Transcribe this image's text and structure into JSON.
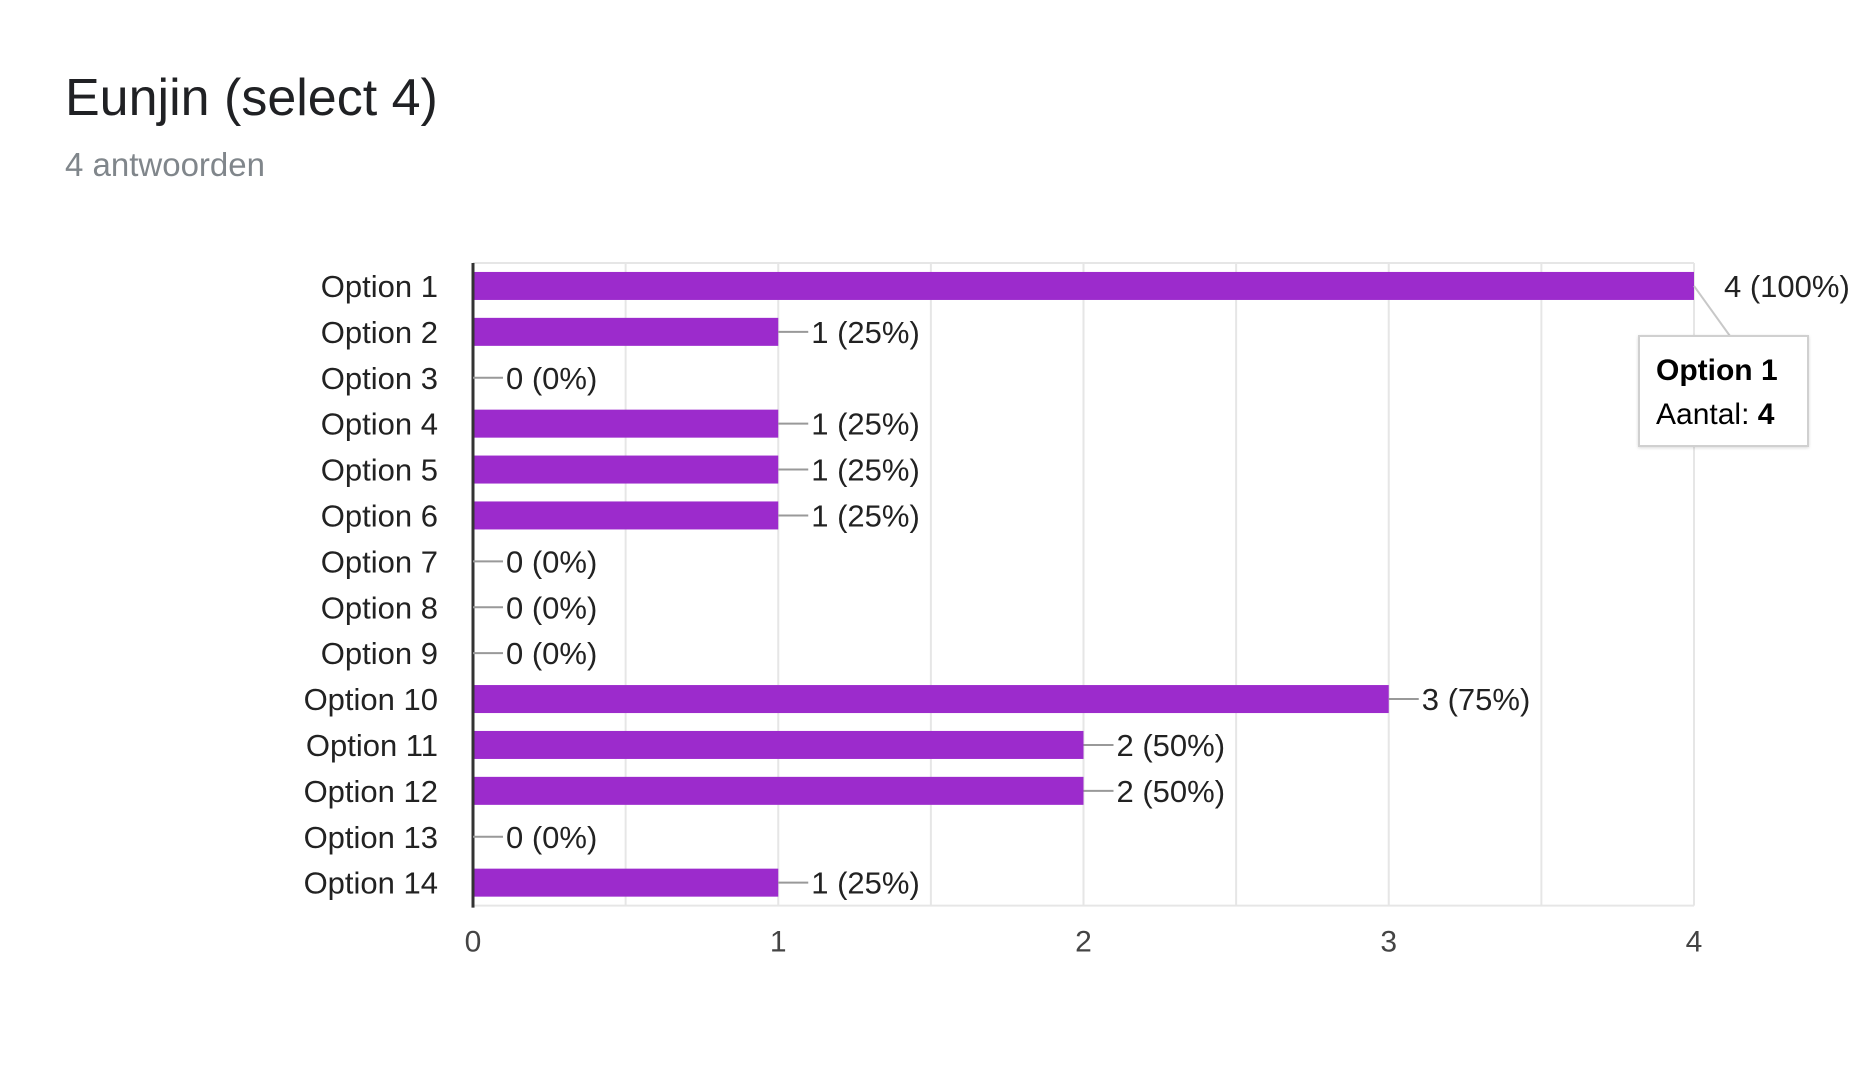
{
  "header": {
    "title": "Eunjin (select 4)",
    "subtitle": "4 antwoorden"
  },
  "tooltip": {
    "category": "Option 1",
    "count_label": "Aantal:",
    "count_value": "4"
  },
  "colors": {
    "bar": "#9c2bcc",
    "grid": "#e6e6e6",
    "axis": "#333333",
    "leader": "#999999",
    "text": "#222222"
  },
  "chart_data": {
    "type": "bar",
    "orientation": "horizontal",
    "title": "",
    "xlabel": "",
    "ylabel": "",
    "xlim": [
      0,
      4
    ],
    "x_ticks": [
      "0",
      "1",
      "2",
      "3",
      "4"
    ],
    "grid": true,
    "categories": [
      "Option 1",
      "Option 2",
      "Option 3",
      "Option 4",
      "Option 5",
      "Option 6",
      "Option 7",
      "Option 8",
      "Option 9",
      "Option 10",
      "Option 11",
      "Option 12",
      "Option 13",
      "Option 14"
    ],
    "values": [
      4,
      1,
      0,
      1,
      1,
      1,
      0,
      0,
      0,
      3,
      2,
      2,
      0,
      1
    ],
    "labels": [
      "4 (100%)",
      "1 (25%)",
      "0 (0%)",
      "1 (25%)",
      "1 (25%)",
      "1 (25%)",
      "0 (0%)",
      "0 (0%)",
      "0 (0%)",
      "3 (75%)",
      "2 (50%)",
      "2 (50%)",
      "0 (0%)",
      "1 (25%)"
    ]
  }
}
